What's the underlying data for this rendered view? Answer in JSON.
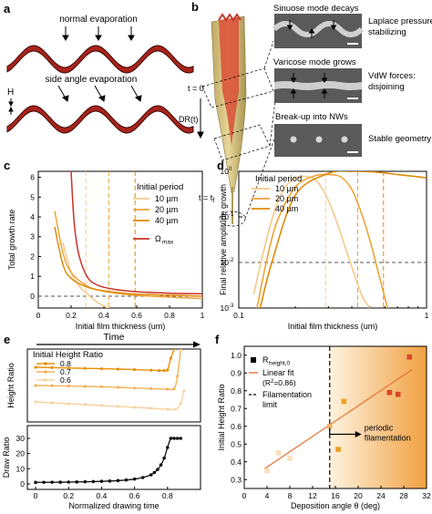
{
  "panels": {
    "a": {
      "letter": "a",
      "label_top": "normal evaporation",
      "label_bottom": "side angle evaporation",
      "height_symbol": "H"
    },
    "b": {
      "letter": "b",
      "t0": "t = 0",
      "dr": "DR(t)",
      "tf": "t = t",
      "tf_sub": "f",
      "mode1_title": "Sinuose mode decays",
      "mode1_desc": [
        "Laplace pressure:",
        "stabilizing"
      ],
      "mode2_title": "Varicose mode grows",
      "mode2_desc": [
        "VdW forces:",
        "disjoining"
      ],
      "mode3_title": "Break-up into NWs",
      "mode3_desc": [
        "Stable geometry"
      ]
    },
    "c": {
      "letter": "c"
    },
    "d": {
      "letter": "d"
    },
    "e": {
      "letter": "e",
      "time_label": "Time"
    },
    "f": {
      "letter": "f"
    }
  },
  "colors": {
    "p10": "#f5c98a",
    "p20": "#eda338",
    "p40": "#e08a08",
    "omega": "#c8332a",
    "h08": "#e8900a",
    "h07": "#f2b25a",
    "h06": "#f6d3a2",
    "draw": "#111111",
    "fit": "#e87a3c"
  },
  "chart_data": [
    {
      "panel": "c",
      "type": "line",
      "xlabel": "Initial film thickness (um)",
      "ylabel": "Total growth rate",
      "xlim": [
        0,
        1
      ],
      "ylim": [
        -0.6,
        6.3
      ],
      "xticks": [
        0,
        0.2,
        0.4,
        0.6,
        0.8,
        1
      ],
      "xtick_labels": [
        "0",
        "0.2",
        "0.4",
        "0.6",
        "0.8",
        "1"
      ],
      "yticks": [
        0,
        1,
        2,
        3,
        4,
        5,
        6
      ],
      "ytick_labels": [
        "0",
        "1",
        "2",
        "3",
        "4",
        "5",
        "6"
      ],
      "legend_title": "Initial period",
      "legend_position": "top-right",
      "hline_dashed": 0,
      "series": [
        {
          "name": "10 µm",
          "color_key": "p10",
          "x": [
            0.15,
            0.2,
            0.25,
            0.3,
            0.35,
            0.4,
            0.5
          ],
          "y": [
            2.7,
            1.2,
            0.5,
            0.1,
            -0.25,
            -0.5,
            -0.9
          ],
          "vline": 0.29
        },
        {
          "name": "20 µm",
          "color_key": "p20",
          "x": [
            0.1,
            0.15,
            0.2,
            0.3,
            0.4,
            0.5,
            0.6,
            0.8,
            1.0
          ],
          "y": [
            4.3,
            2.2,
            1.2,
            0.5,
            0.25,
            0.12,
            0.04,
            -0.05,
            -0.12
          ],
          "vline": 0.43
        },
        {
          "name": "40 µm",
          "color_key": "p40",
          "x": [
            0.1,
            0.15,
            0.2,
            0.3,
            0.4,
            0.5,
            0.6,
            0.8,
            1.0
          ],
          "y": [
            3.5,
            1.6,
            0.9,
            0.45,
            0.27,
            0.17,
            0.1,
            0.05,
            0.0
          ],
          "vline": 0.59
        },
        {
          "name": "Ω",
          "name_sub": "max",
          "color_key": "omega",
          "x": [
            0.2,
            0.22,
            0.25,
            0.3,
            0.35,
            0.4,
            0.5,
            0.6,
            0.8,
            1.0
          ],
          "y": [
            6.3,
            3.6,
            2.0,
            0.95,
            0.6,
            0.45,
            0.3,
            0.22,
            0.15,
            0.12
          ]
        }
      ]
    },
    {
      "panel": "d",
      "type": "line",
      "xlabel": "Initial film thickness (um)",
      "ylabel": "Final relative amplitude growth",
      "xscale": "log",
      "yscale": "log",
      "xlim": [
        0.1,
        1
      ],
      "ylim": [
        0.001,
        1
      ],
      "xticks": [
        0.1,
        1
      ],
      "xtick_labels": [
        "0.1",
        "1"
      ],
      "yticks": [
        0.001,
        0.01,
        0.1,
        1
      ],
      "ytick_labels": [
        "10",
        "10",
        "10",
        "10"
      ],
      "ytick_exponents": [
        "-3",
        "-2",
        "-1",
        "0"
      ],
      "legend_title": "Initial period",
      "legend_position": "top-left",
      "hline_dashed": 0.01,
      "series": [
        {
          "name": "10 µm",
          "color_key": "p10",
          "x": [
            0.12,
            0.14,
            0.16,
            0.18,
            0.2,
            0.22,
            0.25,
            0.28,
            0.32,
            0.38,
            0.45,
            0.5
          ],
          "y": [
            0.002,
            0.03,
            0.2,
            0.5,
            0.72,
            0.78,
            0.7,
            0.4,
            0.12,
            0.015,
            0.002,
            0.001
          ],
          "vline": 0.29
        },
        {
          "name": "20 µm",
          "color_key": "p20",
          "x": [
            0.125,
            0.14,
            0.16,
            0.2,
            0.25,
            0.3,
            0.35,
            0.4,
            0.45,
            0.5,
            0.56,
            0.62
          ],
          "y": [
            0.001,
            0.01,
            0.08,
            0.45,
            0.78,
            0.85,
            0.75,
            0.4,
            0.12,
            0.03,
            0.005,
            0.001
          ],
          "vline": 0.43
        },
        {
          "name": "40 µm",
          "color_key": "p40",
          "x": [
            0.13,
            0.15,
            0.2,
            0.3,
            0.4,
            0.5,
            0.6,
            0.7,
            0.8,
            0.9,
            1.0
          ],
          "y": [
            0.001,
            0.01,
            0.3,
            0.9,
            1.0,
            0.98,
            0.92,
            0.85,
            0.8,
            0.76,
            0.72
          ],
          "vline": 0.59
        }
      ]
    },
    {
      "panel": "e-top",
      "type": "line",
      "ylabel": "Height Ratio",
      "xlim": [
        -0.05,
        1.0
      ],
      "ylim": [
        0.5,
        0.9
      ],
      "legend_title": "Initial Height Ratio",
      "legend_position": "top-left",
      "series": [
        {
          "name": "0.8",
          "color_key": "h08",
          "x": [
            0,
            0.1,
            0.2,
            0.3,
            0.4,
            0.5,
            0.6,
            0.7,
            0.75,
            0.78,
            0.8,
            0.82,
            0.84
          ],
          "y": [
            0.8,
            0.798,
            0.796,
            0.794,
            0.792,
            0.79,
            0.787,
            0.784,
            0.782,
            0.782,
            0.785,
            0.85,
            0.9
          ]
        },
        {
          "name": "0.7",
          "color_key": "h07",
          "x": [
            0,
            0.1,
            0.2,
            0.3,
            0.4,
            0.5,
            0.6,
            0.7,
            0.8,
            0.84,
            0.86,
            0.88
          ],
          "y": [
            0.7,
            0.699,
            0.697,
            0.695,
            0.693,
            0.69,
            0.686,
            0.683,
            0.68,
            0.682,
            0.75,
            0.9
          ]
        },
        {
          "name": "0.6",
          "color_key": "h06",
          "x": [
            0,
            0.1,
            0.2,
            0.3,
            0.4,
            0.5,
            0.6,
            0.7,
            0.8,
            0.85,
            0.88,
            0.9
          ],
          "y": [
            0.61,
            0.605,
            0.6,
            0.595,
            0.59,
            0.585,
            0.58,
            0.575,
            0.57,
            0.57,
            0.6,
            0.67
          ]
        }
      ]
    },
    {
      "panel": "e-bottom",
      "type": "line",
      "xlabel": "Normalized drawing time",
      "ylabel": "Draw Ratio",
      "xlim": [
        -0.05,
        1.0
      ],
      "ylim": [
        0,
        30
      ],
      "xticks": [
        0,
        0.2,
        0.4,
        0.6,
        0.8
      ],
      "xtick_labels": [
        "0",
        "0.2",
        "0.4",
        "0.6",
        "0.8"
      ],
      "yticks": [
        0,
        10,
        20,
        30
      ],
      "ytick_labels": [
        "0",
        "10",
        "20",
        "30"
      ],
      "series": [
        {
          "name": "",
          "color_key": "draw",
          "x": [
            0,
            0.05,
            0.1,
            0.15,
            0.2,
            0.25,
            0.3,
            0.35,
            0.4,
            0.45,
            0.5,
            0.55,
            0.6,
            0.65,
            0.7,
            0.72,
            0.74,
            0.76,
            0.78,
            0.8,
            0.82,
            0.84,
            0.86,
            0.88
          ],
          "y": [
            1,
            1.05,
            1.1,
            1.15,
            1.2,
            1.3,
            1.4,
            1.55,
            1.7,
            1.9,
            2.2,
            2.6,
            3.2,
            4.2,
            6.0,
            7.5,
            9.5,
            12.5,
            17,
            24,
            30,
            30,
            30,
            30
          ]
        }
      ]
    },
    {
      "panel": "f",
      "type": "scatter",
      "xlabel": "Deposition angle θ (deg)",
      "ylabel": "Initial Height Ratio",
      "xlim": [
        0,
        32
      ],
      "ylim": [
        0.25,
        1.05
      ],
      "xticks": [
        0,
        4,
        8,
        12,
        16,
        20,
        24,
        28,
        32
      ],
      "xtick_labels": [
        "0",
        "4",
        "8",
        "12",
        "16",
        "20",
        "24",
        "28",
        "32"
      ],
      "yticks": [
        0.3,
        0.4,
        0.5,
        0.6,
        0.7,
        0.8,
        0.9,
        1.0
      ],
      "ytick_labels": [
        "0.3",
        "0.4",
        "0.5",
        "0.6",
        "0.7",
        "0.8",
        "0.9",
        "1.0"
      ],
      "legend": [
        "R",
        "Linear fit",
        "Filamentation",
        "limit"
      ],
      "legend_sub": "height,0",
      "fit_r2": "(R",
      "fit_r2_tail": "=0.86)",
      "fit_r2_sup": "2",
      "filamentation_limit": 15,
      "annotation": [
        "periodic",
        "filamentation"
      ],
      "points": [
        {
          "x": 4,
          "y": 0.35,
          "color": "#f8dfb8"
        },
        {
          "x": 6,
          "y": 0.45,
          "color": "#f8dfb8"
        },
        {
          "x": 8,
          "y": 0.42,
          "color": "#f8dfb8"
        },
        {
          "x": 15,
          "y": 0.6,
          "color": "#efb260"
        },
        {
          "x": 16.5,
          "y": 0.47,
          "color": "#e8a020"
        },
        {
          "x": 17.5,
          "y": 0.74,
          "color": "#efa020"
        },
        {
          "x": 25.5,
          "y": 0.79,
          "color": "#d8462a"
        },
        {
          "x": 27,
          "y": 0.78,
          "color": "#d8462a"
        },
        {
          "x": 29,
          "y": 0.99,
          "color": "#d8462a"
        }
      ],
      "fit": {
        "x": [
          3.5,
          29.5
        ],
        "y": [
          0.36,
          0.92
        ]
      }
    }
  ]
}
